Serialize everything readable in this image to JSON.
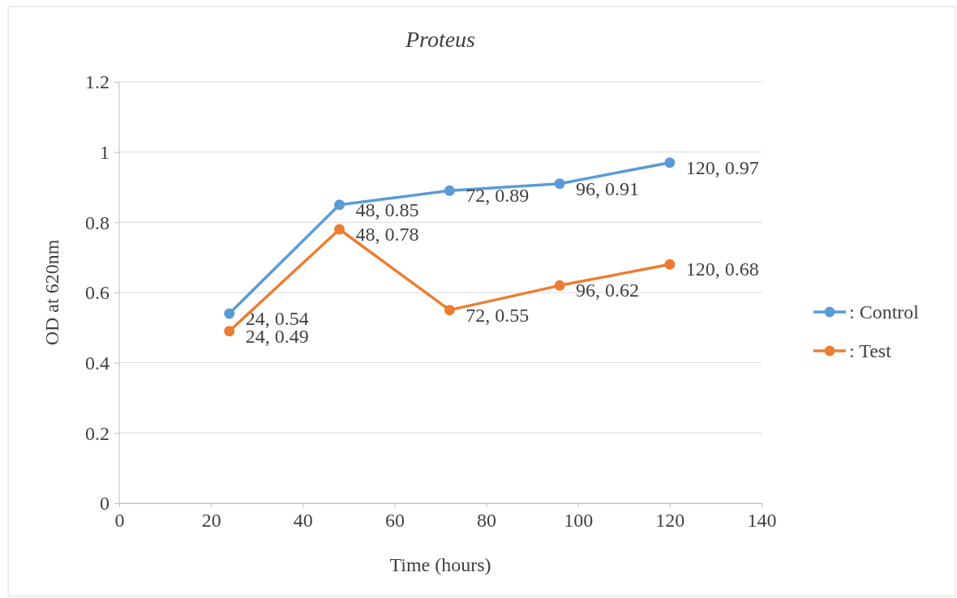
{
  "chart_data": {
    "type": "line",
    "title": "Proteus",
    "xlabel": "Time (hours)",
    "ylabel": "OD at 620nm",
    "x": [
      24,
      48,
      72,
      96,
      120
    ],
    "series": [
      {
        "name": ": Control",
        "color": "#5b9bd5",
        "values": [
          0.54,
          0.85,
          0.89,
          0.91,
          0.97
        ],
        "value_labels": [
          "24, 0.54",
          "48, 0.85",
          "72, 0.89",
          "96, 0.91",
          "120, 0.97"
        ]
      },
      {
        "name": ": Test",
        "color": "#ed7d31",
        "values": [
          0.49,
          0.78,
          0.55,
          0.62,
          0.68
        ],
        "value_labels": [
          "24, 0.49",
          "48, 0.78",
          "72, 0.55",
          "96, 0.62",
          "120, 0.68"
        ]
      }
    ],
    "xlim": [
      0,
      140
    ],
    "xticks": [
      0,
      20,
      40,
      60,
      80,
      100,
      120,
      140
    ],
    "ylim": [
      0,
      1.2
    ],
    "yticks": [
      0,
      0.2,
      0.4,
      0.6,
      0.8,
      1,
      1.2
    ],
    "grid": "y",
    "legend": "right",
    "marker": "circle",
    "line_style": "solid"
  }
}
